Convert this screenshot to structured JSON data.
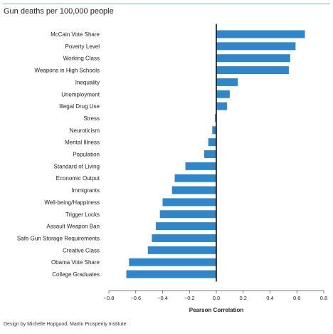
{
  "header": {
    "title": "Gun deaths per 100,000 people"
  },
  "footer": {
    "credit": "Design by Michelle Hopgood, Martin Prosperity Institute"
  },
  "chart_data": {
    "type": "bar",
    "orientation": "horizontal",
    "title": "Gun deaths per 100,000 people",
    "xlabel": "Pearson Correlation",
    "ylabel": "",
    "xlim": [
      -0.8,
      0.8
    ],
    "xticks": [
      -0.8,
      -0.6,
      -0.4,
      -0.2,
      0.0,
      0.2,
      0.4,
      0.6,
      0.8
    ],
    "xtick_labels": [
      "−0.8",
      "−0.6",
      "−0.4",
      "−0.2",
      "0.0",
      "0.2",
      "0.4",
      "0.6",
      "0.8"
    ],
    "bar_color": "#2f87c9",
    "zero_line_color": "#111111",
    "grid": false,
    "categories": [
      "McCain Vote Share",
      "Poverty Level",
      "Working Class",
      "Weapons in High Schools",
      "Inequality",
      "Unemployment",
      "Illegal Drug Use",
      "Stress",
      "Neuroticism",
      "Mental Illness",
      "Population",
      "Standard of Living",
      "Economic Output",
      "Immigrants",
      "Well-being/Happiness",
      "Trigger Locks",
      "Assault Weapon Ban",
      "Safe Gun Storage Requirements",
      "Creative Class",
      "Obama Vote Share",
      "College Graduates"
    ],
    "values": [
      0.66,
      0.59,
      0.55,
      0.54,
      0.16,
      0.1,
      0.08,
      -0.01,
      -0.03,
      -0.06,
      -0.09,
      -0.23,
      -0.31,
      -0.33,
      -0.4,
      -0.42,
      -0.45,
      -0.48,
      -0.51,
      -0.65,
      -0.67
    ]
  }
}
